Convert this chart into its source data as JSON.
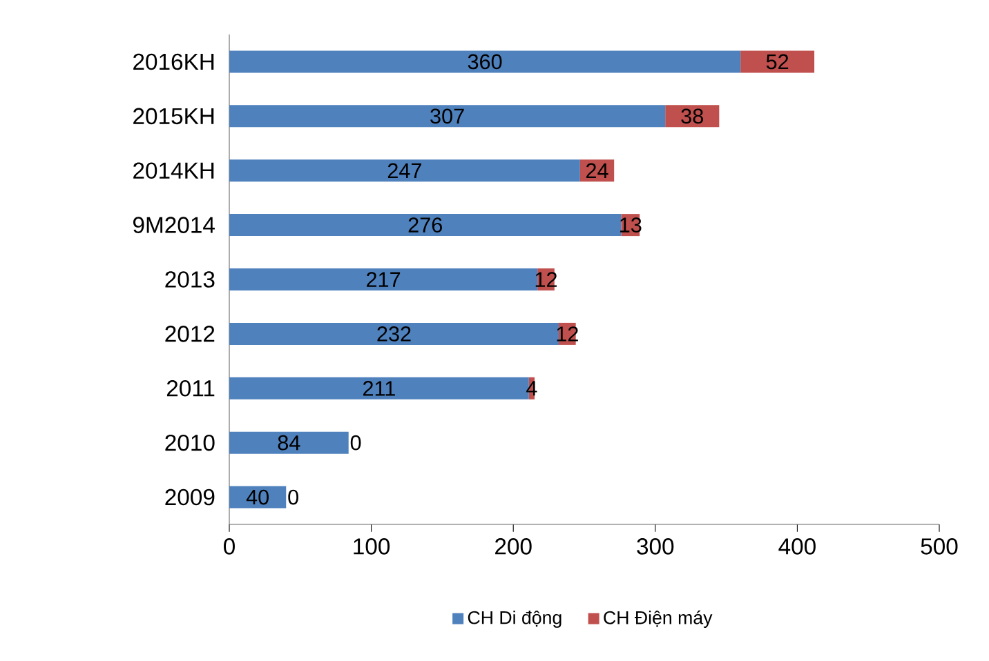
{
  "chart_data": {
    "type": "bar",
    "orientation": "horizontal",
    "stacked": true,
    "categories": [
      "2016KH",
      "2015KH",
      "2014KH",
      "9M2014",
      "2013",
      "2012",
      "2011",
      "2010",
      "2009"
    ],
    "series": [
      {
        "name": "CH Di động",
        "color": "#4f81bd",
        "values": [
          360,
          307,
          247,
          276,
          217,
          232,
          211,
          84,
          40
        ]
      },
      {
        "name": "CH Điện máy",
        "color": "#c0504d",
        "values": [
          52,
          38,
          24,
          13,
          12,
          12,
          4,
          0,
          0
        ]
      }
    ],
    "xlim": [
      0,
      500
    ],
    "xticks": [
      0,
      100,
      200,
      300,
      400,
      500
    ],
    "data_labels": true,
    "legend": "bottom"
  }
}
